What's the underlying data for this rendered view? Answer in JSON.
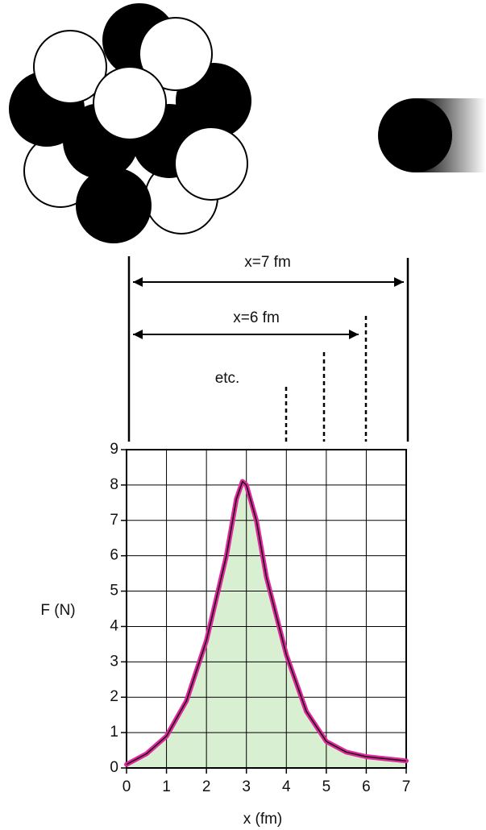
{
  "chart_data": {
    "type": "area",
    "annotations": [
      "x=7 fm",
      "x=6 fm",
      "etc."
    ],
    "y_label": "F (N)",
    "x_label": "x (fm)",
    "x": [
      0,
      0.5,
      1,
      1.5,
      2,
      2.5,
      2.75,
      2.9,
      3,
      3.25,
      3.5,
      4,
      4.5,
      5,
      5.5,
      6,
      6.5,
      7
    ],
    "values": [
      0.1,
      0.4,
      0.9,
      1.9,
      3.6,
      6.0,
      7.6,
      8.1,
      8.0,
      7.0,
      5.4,
      3.2,
      1.6,
      0.75,
      0.45,
      0.32,
      0.26,
      0.2
    ],
    "color": "#e0289c",
    "fill": "#d8efd2",
    "xlim": [
      0,
      7
    ],
    "ylim": [
      0,
      9
    ],
    "xticks": [
      0,
      1,
      2,
      3,
      4,
      5,
      6,
      7
    ],
    "yticks": [
      0,
      1,
      2,
      3,
      4,
      5,
      6,
      7,
      8,
      9
    ],
    "grid": true
  }
}
